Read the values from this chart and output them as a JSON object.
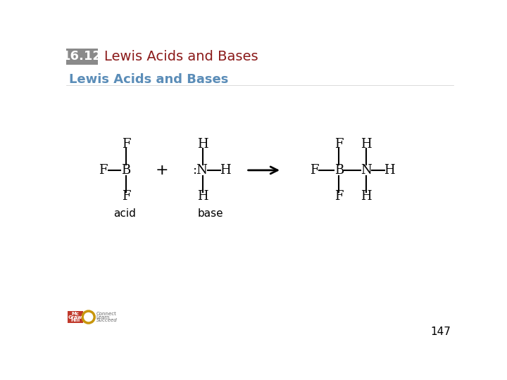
{
  "title_box_text": "16.12",
  "title_box_bg": "#8a8a8a",
  "title_text": "Lewis Acids and Bases",
  "title_color": "#8b1a1a",
  "subtitle_text": "Lewis Acids and Bases",
  "subtitle_color": "#5b8db8",
  "page_number": "147",
  "bg_color": "#ffffff",
  "text_color": "#000000",
  "font_size_title": 14,
  "font_size_subtitle": 13,
  "font_size_struct": 13,
  "font_size_label": 11,
  "font_size_page": 11,
  "font_size_box": 13
}
